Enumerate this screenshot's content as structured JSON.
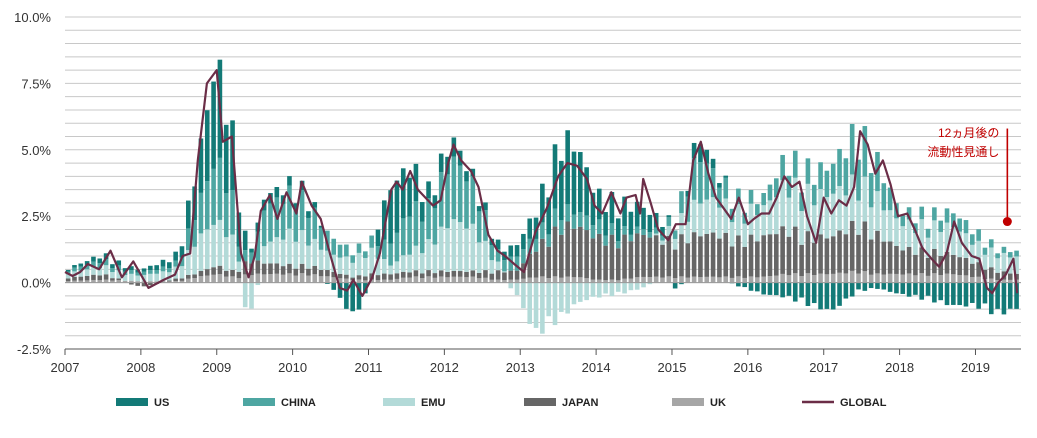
{
  "chart_data": {
    "type": "bar",
    "subtype": "stacked-bar-with-line",
    "title": "",
    "xlabel": "",
    "ylabel": "",
    "ylim": [
      -2.5,
      10.0
    ],
    "y_ticks": [
      "10.0%",
      "7.5%",
      "5.0%",
      "2.5%",
      "0.0%",
      "-2.5%"
    ],
    "y_tick_values": [
      10.0,
      7.5,
      5.0,
      2.5,
      0.0,
      -2.5
    ],
    "x_ticks": [
      "2007",
      "2008",
      "2009",
      "2010",
      "2011",
      "2012",
      "2013",
      "2014",
      "2015",
      "2016",
      "2017",
      "2018",
      "2019"
    ],
    "x_tick_positions": [
      2007,
      2008,
      2009,
      2010,
      2011,
      2012,
      2013,
      2014,
      2015,
      2016,
      2017,
      2018,
      2019
    ],
    "xlim": [
      2007.0,
      2019.6
    ],
    "grid": true,
    "legend_position": "bottom",
    "colors": {
      "US": "#137a77",
      "CHINA": "#4ea6a2",
      "EMU": "#b3dad8",
      "JAPAN": "#666666",
      "UK": "#a6a6a6",
      "GLOBAL": "#6b2d47",
      "annotation": "#c00000",
      "grid": "#c8c8c8"
    },
    "legend": [
      "US",
      "CHINA",
      "EMU",
      "JAPAN",
      "UK",
      "GLOBAL"
    ],
    "annotation": {
      "lines": [
        "12ヵ月後の",
        "流動性見通し"
      ],
      "x": 2019.42,
      "y_top": 5.8,
      "y_point": 2.3
    },
    "global_knots": [
      [
        2007.0,
        0.4
      ],
      [
        2007.1,
        0.25
      ],
      [
        2007.2,
        0.4
      ],
      [
        2007.3,
        0.7
      ],
      [
        2007.45,
        0.5
      ],
      [
        2007.6,
        1.2
      ],
      [
        2007.75,
        0.2
      ],
      [
        2007.9,
        0.8
      ],
      [
        2008.1,
        -0.2
      ],
      [
        2008.3,
        0.1
      ],
      [
        2008.45,
        0.3
      ],
      [
        2008.55,
        1.0
      ],
      [
        2008.65,
        1.1
      ],
      [
        2008.75,
        4.6
      ],
      [
        2008.87,
        7.5
      ],
      [
        2009.0,
        8.0
      ],
      [
        2009.08,
        5.3
      ],
      [
        2009.2,
        5.5
      ],
      [
        2009.32,
        1.1
      ],
      [
        2009.42,
        0.2
      ],
      [
        2009.5,
        1.0
      ],
      [
        2009.58,
        2.7
      ],
      [
        2009.7,
        3.3
      ],
      [
        2009.8,
        2.4
      ],
      [
        2009.92,
        3.4
      ],
      [
        2010.05,
        2.6
      ],
      [
        2010.12,
        3.8
      ],
      [
        2010.25,
        2.9
      ],
      [
        2010.37,
        2.4
      ],
      [
        2010.5,
        1.0
      ],
      [
        2010.62,
        -0.2
      ],
      [
        2010.72,
        -0.3
      ],
      [
        2010.8,
        0.1
      ],
      [
        2010.92,
        -0.5
      ],
      [
        2011.05,
        0.2
      ],
      [
        2011.15,
        1.1
      ],
      [
        2011.3,
        3.5
      ],
      [
        2011.37,
        3.8
      ],
      [
        2011.45,
        3.5
      ],
      [
        2011.55,
        4.2
      ],
      [
        2011.65,
        3.5
      ],
      [
        2011.75,
        3.2
      ],
      [
        2011.85,
        2.9
      ],
      [
        2011.95,
        3.1
      ],
      [
        2012.05,
        4.5
      ],
      [
        2012.12,
        5.2
      ],
      [
        2012.22,
        4.6
      ],
      [
        2012.35,
        4.2
      ],
      [
        2012.45,
        3.6
      ],
      [
        2012.58,
        1.8
      ],
      [
        2012.7,
        1.2
      ],
      [
        2012.8,
        1.0
      ],
      [
        2012.92,
        0.7
      ],
      [
        2013.05,
        0.4
      ],
      [
        2013.2,
        1.9
      ],
      [
        2013.35,
        2.8
      ],
      [
        2013.5,
        4.0
      ],
      [
        2013.62,
        4.5
      ],
      [
        2013.75,
        4.4
      ],
      [
        2013.88,
        3.9
      ],
      [
        2013.98,
        2.9
      ],
      [
        2014.08,
        2.6
      ],
      [
        2014.2,
        3.4
      ],
      [
        2014.32,
        2.6
      ],
      [
        2014.4,
        3.2
      ],
      [
        2014.52,
        3.3
      ],
      [
        2014.58,
        2.6
      ],
      [
        2014.62,
        3.9
      ],
      [
        2014.72,
        3.0
      ],
      [
        2014.82,
        2.0
      ],
      [
        2014.95,
        1.6
      ],
      [
        2015.05,
        2.2
      ],
      [
        2015.18,
        2.2
      ],
      [
        2015.28,
        4.6
      ],
      [
        2015.38,
        5.3
      ],
      [
        2015.48,
        4.1
      ],
      [
        2015.58,
        3.2
      ],
      [
        2015.68,
        2.8
      ],
      [
        2015.78,
        2.4
      ],
      [
        2015.88,
        3.2
      ],
      [
        2016.0,
        2.2
      ],
      [
        2016.08,
        2.4
      ],
      [
        2016.18,
        2.6
      ],
      [
        2016.28,
        2.6
      ],
      [
        2016.38,
        3.2
      ],
      [
        2016.48,
        4.0
      ],
      [
        2016.58,
        3.6
      ],
      [
        2016.68,
        3.8
      ],
      [
        2016.78,
        2.5
      ],
      [
        2016.9,
        1.5
      ],
      [
        2017.0,
        3.2
      ],
      [
        2017.1,
        2.6
      ],
      [
        2017.2,
        3.1
      ],
      [
        2017.3,
        2.9
      ],
      [
        2017.4,
        3.6
      ],
      [
        2017.48,
        5.7
      ],
      [
        2017.58,
        5.2
      ],
      [
        2017.68,
        4.1
      ],
      [
        2017.78,
        4.6
      ],
      [
        2017.88,
        3.7
      ],
      [
        2017.98,
        2.5
      ],
      [
        2018.1,
        2.6
      ],
      [
        2018.2,
        2.0
      ],
      [
        2018.3,
        1.3
      ],
      [
        2018.42,
        0.9
      ],
      [
        2018.52,
        0.6
      ],
      [
        2018.62,
        1.1
      ],
      [
        2018.72,
        2.3
      ],
      [
        2018.82,
        1.5
      ],
      [
        2018.95,
        1.0
      ],
      [
        2019.05,
        0.9
      ],
      [
        2019.15,
        -0.2
      ],
      [
        2019.22,
        -0.4
      ],
      [
        2019.3,
        0.0
      ],
      [
        2019.4,
        0.3
      ],
      [
        2019.5,
        0.9
      ],
      [
        2019.55,
        -0.4
      ]
    ],
    "bar_knots": [
      [
        2007.0,
        [
          0.05,
          0.1,
          0.15,
          0.1,
          0.05
        ]
      ],
      [
        2007.5,
        [
          0.2,
          0.2,
          0.3,
          0.2,
          0.1
        ]
      ],
      [
        2008.0,
        [
          0.1,
          0.1,
          0.2,
          -0.15,
          0.05
        ]
      ],
      [
        2008.5,
        [
          0.3,
          0.2,
          0.4,
          0.1,
          0.05
        ]
      ],
      [
        2008.75,
        [
          1.5,
          1.2,
          1.2,
          0.15,
          0.2
        ]
      ],
      [
        2009.0,
        [
          3.5,
          2.2,
          1.6,
          0.3,
          0.3
        ]
      ],
      [
        2009.2,
        [
          2.3,
          1.5,
          1.2,
          0.2,
          0.2
        ]
      ],
      [
        2009.3,
        [
          1.5,
          0.6,
          0.4,
          0.3,
          0.2
        ]
      ],
      [
        2009.42,
        [
          0.1,
          0.2,
          -1.5,
          0.5,
          0.3
        ]
      ],
      [
        2009.6,
        [
          0.4,
          1.3,
          0.6,
          0.4,
          0.3
        ]
      ],
      [
        2010.0,
        [
          0.3,
          1.4,
          1.2,
          0.3,
          0.3
        ]
      ],
      [
        2010.2,
        [
          0.3,
          1.2,
          1.0,
          0.3,
          0.3
        ]
      ],
      [
        2010.5,
        [
          -0.1,
          0.6,
          0.6,
          0.2,
          0.2
        ]
      ],
      [
        2010.8,
        [
          -1.2,
          0.3,
          0.6,
          0.1,
          0.1
        ]
      ],
      [
        2011.0,
        [
          -0.3,
          0.3,
          0.9,
          0.2,
          0.1
        ]
      ],
      [
        2011.3,
        [
          2.0,
          0.8,
          0.3,
          0.2,
          0.1
        ]
      ],
      [
        2011.55,
        [
          1.5,
          1.5,
          0.7,
          0.2,
          0.2
        ]
      ],
      [
        2011.8,
        [
          0.5,
          1.3,
          1.0,
          0.2,
          0.2
        ]
      ],
      [
        2012.1,
        [
          0.7,
          2.2,
          1.8,
          0.2,
          0.2
        ]
      ],
      [
        2012.4,
        [
          0.2,
          1.5,
          1.5,
          0.2,
          0.2
        ]
      ],
      [
        2012.7,
        [
          0.3,
          0.4,
          0.3,
          0.3,
          0.1
        ]
      ],
      [
        2012.95,
        [
          0.4,
          0.5,
          -0.4,
          0.3,
          0.1
        ]
      ],
      [
        2013.2,
        [
          0.8,
          0.5,
          -1.8,
          1.0,
          0.2
        ]
      ],
      [
        2013.55,
        [
          2.5,
          0.6,
          -1.2,
          1.8,
          0.2
        ]
      ],
      [
        2013.75,
        [
          2.3,
          0.5,
          -0.7,
          1.8,
          0.2
        ]
      ],
      [
        2014.0,
        [
          1.0,
          0.5,
          -0.5,
          1.5,
          0.1
        ]
      ],
      [
        2014.3,
        [
          1.0,
          0.3,
          -0.4,
          1.4,
          0.1
        ]
      ],
      [
        2014.6,
        [
          0.8,
          0.2,
          -0.2,
          1.5,
          0.2
        ]
      ],
      [
        2014.9,
        [
          0.3,
          0.2,
          0.2,
          1.3,
          0.2
        ]
      ],
      [
        2015.05,
        [
          -0.3,
          0.4,
          0.5,
          1.3,
          0.2
        ]
      ],
      [
        2015.35,
        [
          0.7,
          1.6,
          1.2,
          1.5,
          0.2
        ]
      ],
      [
        2015.6,
        [
          0.2,
          0.8,
          1.2,
          1.5,
          0.2
        ]
      ],
      [
        2015.85,
        [
          -0.1,
          0.5,
          1.0,
          1.3,
          0.2
        ]
      ],
      [
        2016.2,
        [
          -0.4,
          0.4,
          1.0,
          1.4,
          0.2
        ]
      ],
      [
        2016.5,
        [
          -0.5,
          0.9,
          1.6,
          1.6,
          0.3
        ]
      ],
      [
        2016.85,
        [
          -0.8,
          0.8,
          1.5,
          1.3,
          0.3
        ]
      ],
      [
        2017.1,
        [
          -1.0,
          1.0,
          1.5,
          1.3,
          0.3
        ]
      ],
      [
        2017.45,
        [
          -0.3,
          1.8,
          1.5,
          1.7,
          0.4
        ]
      ],
      [
        2017.7,
        [
          -0.2,
          1.3,
          1.3,
          1.4,
          0.3
        ]
      ],
      [
        2018.0,
        [
          -0.4,
          0.4,
          0.9,
          0.9,
          0.3
        ]
      ],
      [
        2018.4,
        [
          -0.6,
          0.4,
          0.9,
          0.8,
          0.3
        ]
      ],
      [
        2018.7,
        [
          -0.8,
          0.5,
          1.0,
          0.7,
          0.3
        ]
      ],
      [
        2019.0,
        [
          -0.8,
          0.4,
          0.7,
          0.5,
          0.2
        ]
      ],
      [
        2019.3,
        [
          -1.1,
          0.2,
          0.6,
          0.3,
          0.1
        ]
      ],
      [
        2019.55,
        [
          -0.9,
          0.2,
          0.6,
          0.2,
          0.1
        ]
      ]
    ]
  }
}
